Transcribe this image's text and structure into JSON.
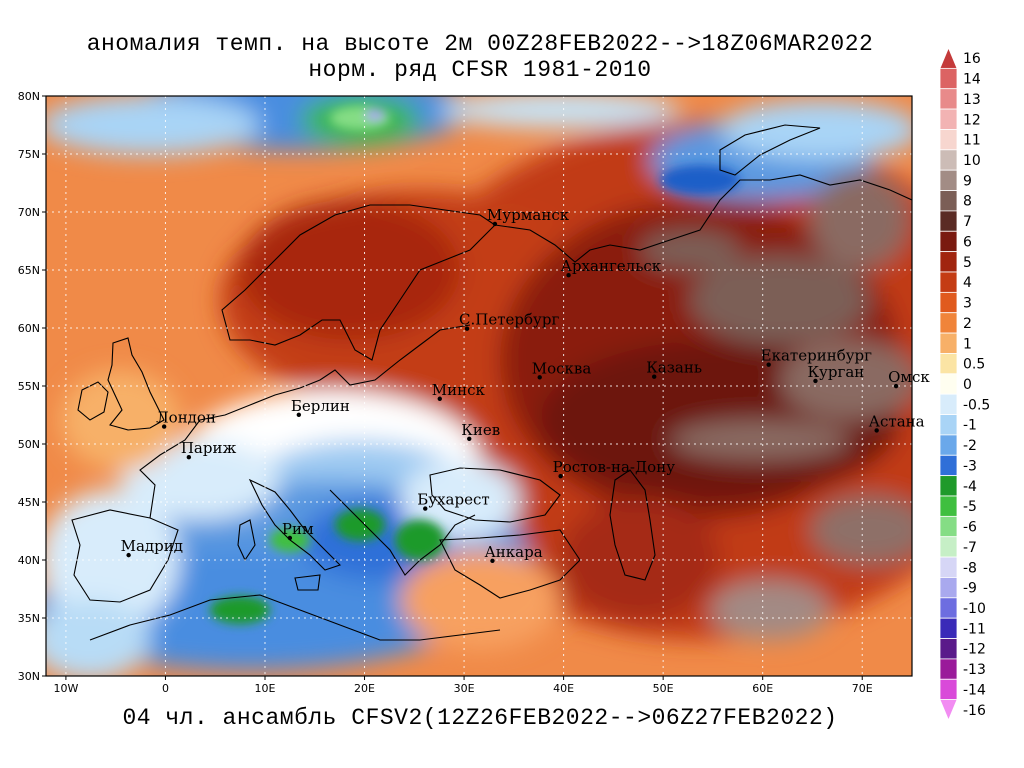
{
  "title_line1": "аномалия темп. на высоте 2м 00Z28FEB2022-->18Z06MAR2022",
  "title_line2": "норм. ряд CFSR 1981-2010",
  "footer": "04 чл. ансамбль CFSV2(12Z26FEB2022-->06Z27FEB2022)",
  "lat_ticks": [
    "80N",
    "75N",
    "70N",
    "65N",
    "60N",
    "55N",
    "50N",
    "45N",
    "40N",
    "35N",
    "30N"
  ],
  "lat_values": [
    80,
    75,
    70,
    65,
    60,
    55,
    50,
    45,
    40,
    35,
    30
  ],
  "lon_ticks": [
    "10W",
    "0",
    "10E",
    "20E",
    "30E",
    "40E",
    "50E",
    "60E",
    "70E"
  ],
  "lon_values": [
    -10,
    0,
    10,
    20,
    30,
    40,
    50,
    60,
    70
  ],
  "extent": {
    "lon_min": -12,
    "lon_max": 75,
    "lat_min": 30,
    "lat_max": 80
  },
  "cities": [
    {
      "name": "Мурманск",
      "lon": 33.1,
      "lat": 68.97
    },
    {
      "name": "Архангельск",
      "lon": 40.5,
      "lat": 64.55
    },
    {
      "name": "С.Петербург",
      "lon": 30.3,
      "lat": 59.94
    },
    {
      "name": "Москва",
      "lon": 37.6,
      "lat": 55.75
    },
    {
      "name": "Казань",
      "lon": 49.1,
      "lat": 55.8
    },
    {
      "name": "Екатеринбург",
      "lon": 60.6,
      "lat": 56.84
    },
    {
      "name": "Курган",
      "lon": 65.3,
      "lat": 55.44
    },
    {
      "name": "Омск",
      "lon": 73.4,
      "lat": 54.99
    },
    {
      "name": "Минск",
      "lon": 27.56,
      "lat": 53.9
    },
    {
      "name": "Берлин",
      "lon": 13.4,
      "lat": 52.52
    },
    {
      "name": "Лондон",
      "lon": -0.13,
      "lat": 51.5
    },
    {
      "name": "Париж",
      "lon": 2.35,
      "lat": 48.86
    },
    {
      "name": "Киев",
      "lon": 30.52,
      "lat": 50.45
    },
    {
      "name": "Астана",
      "lon": 71.45,
      "lat": 51.17
    },
    {
      "name": "Ростов-на-Дону",
      "lon": 39.7,
      "lat": 47.23
    },
    {
      "name": "Бухарест",
      "lon": 26.1,
      "lat": 44.43
    },
    {
      "name": "Рим",
      "lon": 12.5,
      "lat": 41.9
    },
    {
      "name": "Мадрид",
      "lon": -3.7,
      "lat": 40.42
    },
    {
      "name": "Анкара",
      "lon": 32.85,
      "lat": 39.93
    }
  ],
  "colorbar": {
    "levels": [
      "16",
      "14",
      "13",
      "12",
      "11",
      "10",
      "9",
      "8",
      "7",
      "6",
      "5",
      "4",
      "3",
      "2",
      "1",
      "0.5",
      "0",
      "-0.5",
      "-1",
      "-2",
      "-3",
      "-4",
      "-5",
      "-6",
      "-7",
      "-8",
      "-9",
      "-10",
      "-11",
      "-12",
      "-13",
      "-14",
      "-16"
    ],
    "colors": [
      "#c43a3a",
      "#dc6363",
      "#e88a8a",
      "#f2b3b3",
      "#f7d6cf",
      "#ccbcb6",
      "#a28c85",
      "#7b5e56",
      "#5a2b24",
      "#7a1a10",
      "#a1250f",
      "#c43c14",
      "#e05a1e",
      "#f0843a",
      "#f7b068",
      "#fbe4a4",
      "#fffef0",
      "#d8ecfb",
      "#a9d4f6",
      "#6aa8ea",
      "#2f6fd8",
      "#1f9a2a",
      "#3fbf3f",
      "#85dd85",
      "#c6efc6",
      "#d6d6f6",
      "#a9a9ee",
      "#6d6de0",
      "#3a2ab8",
      "#5a1a8a",
      "#9a1a9a",
      "#d94ad9",
      "#f28cf2"
    ]
  },
  "colors": {
    "ocean_bg": "#f5c08a",
    "outline": "#000000"
  }
}
